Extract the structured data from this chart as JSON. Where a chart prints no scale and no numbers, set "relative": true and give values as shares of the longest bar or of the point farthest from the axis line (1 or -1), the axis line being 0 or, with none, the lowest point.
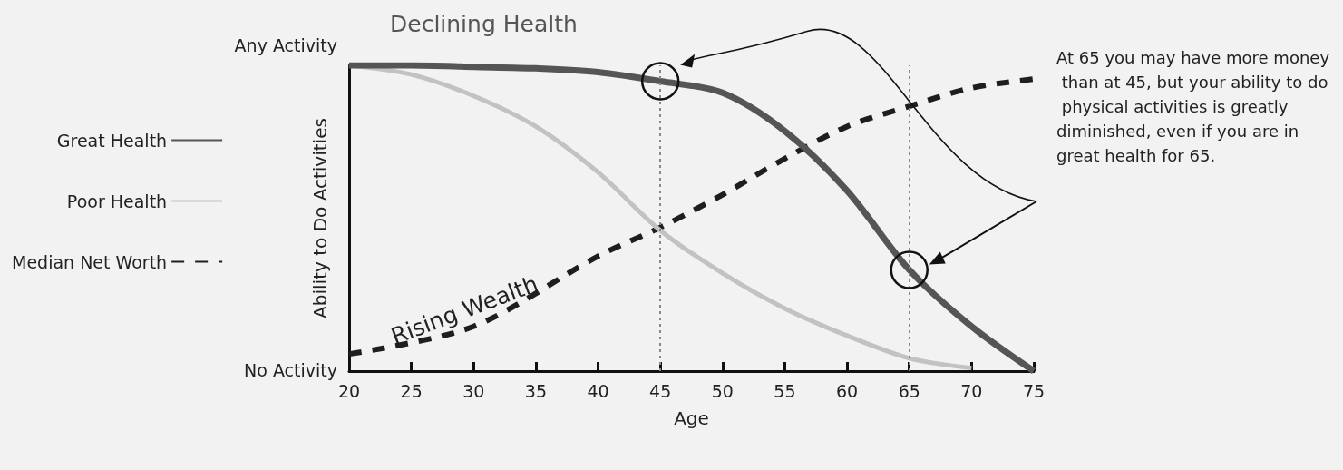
{
  "chart_data": {
    "type": "line",
    "xlabel": "Age",
    "ylabel": "Ability to Do Activities",
    "xlim": [
      20,
      75
    ],
    "xticks": [
      20,
      25,
      30,
      35,
      40,
      45,
      50,
      55,
      60,
      65,
      70,
      75
    ],
    "relative": true,
    "series": [
      {
        "name": "Great Health",
        "color": "#555555",
        "line_style": "solid",
        "x": [
          20,
          25,
          30,
          35,
          40,
          45,
          50,
          55,
          60,
          65,
          70,
          75
        ],
        "values": [
          1,
          1,
          0.995,
          0.99,
          0.978,
          0.948,
          0.91,
          0.785,
          0.59,
          0.331,
          0.146,
          0
        ]
      },
      {
        "name": "Poor Health",
        "color": "#c2c2c2",
        "line_style": "solid",
        "x": [
          20,
          25,
          30,
          35,
          40,
          45,
          50,
          55,
          60,
          65,
          70
        ],
        "values": [
          1,
          0.97,
          0.9,
          0.8,
          0.65,
          0.46,
          0.32,
          0.205,
          0.116,
          0.042,
          0.01
        ]
      },
      {
        "name": "Median Net Worth",
        "color": "#1e1e1e",
        "line_style": "dashed",
        "x": [
          20,
          30,
          40,
          45,
          50,
          55,
          60,
          65,
          70,
          75
        ],
        "values": [
          0.056,
          0.146,
          0.376,
          0.47,
          0.577,
          0.695,
          0.8,
          0.866,
          0.926,
          0.955
        ]
      }
    ],
    "ref_lines": [
      {
        "axis": "x",
        "value": 45,
        "label": null,
        "color": "#888888",
        "line_style": "dotted"
      },
      {
        "axis": "x",
        "value": 65,
        "label": null,
        "color": "#888888",
        "line_style": "dotted"
      }
    ],
    "annotations": [
      "Declining Health",
      "Rising Wealth",
      "Any Activity",
      "No Activity",
      "At 65 you may have more money than at 45, but your ability to do physical activities is greatly diminished, even if you are in great health for 65."
    ],
    "legend": "left",
    "grid": false,
    "marker": "none"
  }
}
